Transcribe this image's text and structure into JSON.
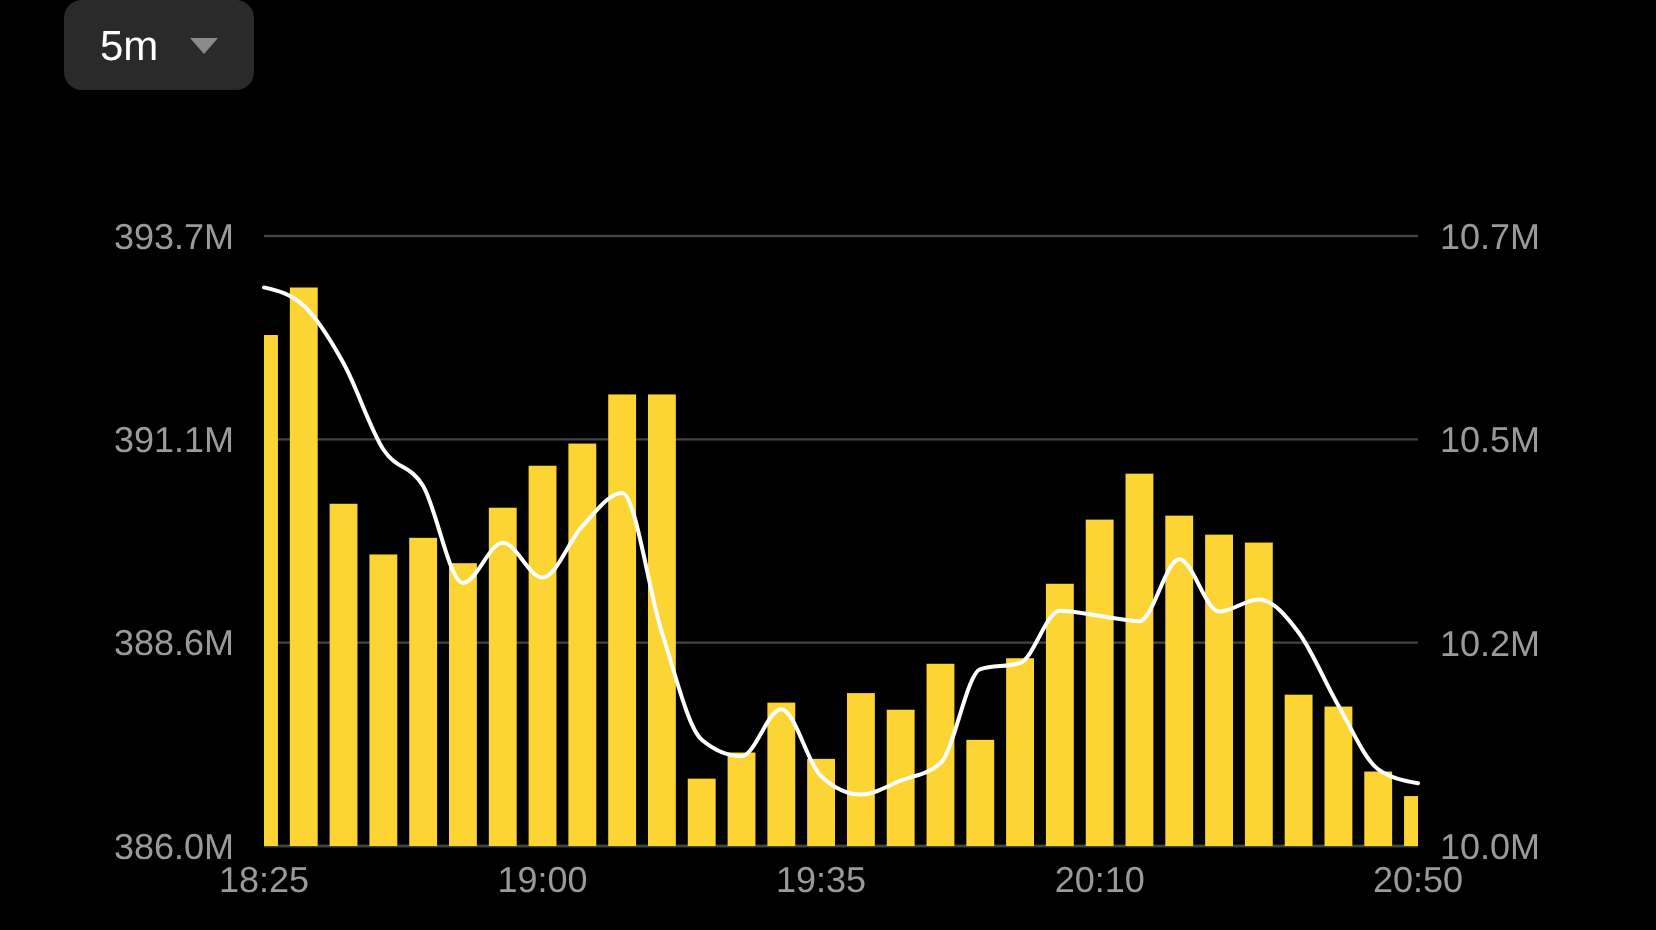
{
  "chart_data": {
    "type": "bar",
    "annotations": [
      "5m"
    ],
    "x": [
      18.4167,
      18.5,
      18.5833,
      18.6667,
      18.75,
      18.8333,
      18.9167,
      19,
      19.0833,
      19.1667,
      19.25,
      19.3333,
      19.4167,
      19.5,
      19.5833,
      19.6667,
      19.75,
      19.8333,
      19.9167,
      20,
      20.0833,
      20.1667,
      20.25,
      20.3333,
      20.4167,
      20.5,
      20.5833,
      20.6667,
      20.75,
      20.8333
    ],
    "xlim": [
      18.4167,
      20.8333
    ],
    "xticks": [
      {
        "value": 18.4167,
        "label": "18:25"
      },
      {
        "value": 19,
        "label": "19:00"
      },
      {
        "value": 19.5833,
        "label": "19:35"
      },
      {
        "value": 20.1667,
        "label": "20:10"
      },
      {
        "value": 20.8333,
        "label": "20:50"
      }
    ],
    "ylim": [
      386.0,
      393.7
    ],
    "yticks": [
      {
        "value": 386.0,
        "label": "386.0M"
      },
      {
        "value": 388.567,
        "label": "388.6M"
      },
      {
        "value": 391.133,
        "label": "391.1M"
      },
      {
        "value": 393.7,
        "label": "393.7M"
      }
    ],
    "y2lim": [
      10.0,
      10.7
    ],
    "y2ticks": [
      {
        "value": 10.0,
        "label": "10.0M"
      },
      {
        "value": 10.233,
        "label": "10.2M"
      },
      {
        "value": 10.467,
        "label": "10.5M"
      },
      {
        "value": 10.7,
        "label": "10.7M"
      }
    ],
    "grid": "y",
    "series": [
      {
        "color": "#fcd535",
        "values": [
          392.45,
          393.05,
          390.32,
          389.68,
          389.89,
          389.57,
          390.27,
          390.8,
          391.08,
          391.7,
          391.7,
          386.85,
          387.18,
          387.81,
          387.1,
          387.93,
          387.72,
          388.3,
          387.34,
          388.37,
          389.31,
          390.12,
          390.7,
          390.17,
          389.93,
          389.83,
          387.91,
          387.76,
          386.94,
          386.63
        ]
      },
      {
        "type": "line",
        "axis": "y2",
        "color": "#ffffff",
        "values": [
          10.641,
          10.62,
          10.554,
          10.455,
          10.413,
          10.302,
          10.348,
          10.308,
          10.367,
          10.405,
          10.245,
          10.122,
          10.103,
          10.157,
          10.08,
          10.059,
          10.075,
          10.095,
          10.203,
          10.21,
          10.27,
          10.264,
          10.258,
          10.329,
          10.269,
          10.283,
          10.245,
          10.161,
          10.088,
          10.072
        ]
      }
    ]
  }
}
